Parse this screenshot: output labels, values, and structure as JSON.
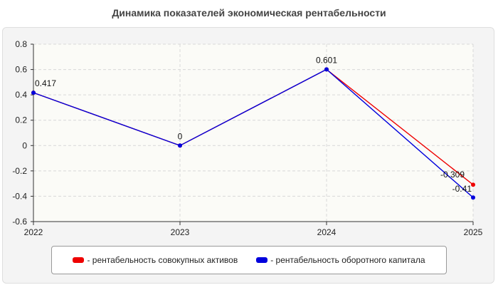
{
  "chart_data": {
    "type": "line",
    "title": "Динамика показателей экономическая рентабельности",
    "x": [
      "2022",
      "2023",
      "2024",
      "2025"
    ],
    "ylim": [
      -0.6,
      0.8
    ],
    "yticks": [
      "0.8",
      "0.6",
      "0.4",
      "0.2",
      "0",
      "-0.2",
      "-0.4",
      "-0.6"
    ],
    "grid": true,
    "legend_position": "bottom",
    "series": [
      {
        "name": "- рентабельность совокупных активов",
        "color": "#ee0000",
        "values": [
          0.417,
          0,
          0.601,
          -0.309
        ],
        "labels": [
          "",
          "",
          "",
          "-0.309"
        ]
      },
      {
        "name": "- рентабельность оборотного капитала",
        "color": "#0000dd",
        "values": [
          0.417,
          0,
          0.601,
          -0.41
        ],
        "labels": [
          "0.417",
          "0",
          "0.601",
          "-0.41"
        ]
      }
    ]
  }
}
